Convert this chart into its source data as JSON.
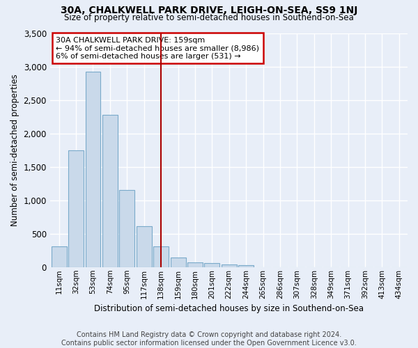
{
  "title": "30A, CHALKWELL PARK DRIVE, LEIGH-ON-SEA, SS9 1NJ",
  "subtitle": "Size of property relative to semi-detached houses in Southend-on-Sea",
  "xlabel": "Distribution of semi-detached houses by size in Southend-on-Sea",
  "ylabel": "Number of semi-detached properties",
  "bar_labels": [
    "11sqm",
    "32sqm",
    "53sqm",
    "74sqm",
    "95sqm",
    "117sqm",
    "138sqm",
    "159sqm",
    "180sqm",
    "201sqm",
    "222sqm",
    "244sqm",
    "265sqm",
    "286sqm",
    "307sqm",
    "328sqm",
    "349sqm",
    "371sqm",
    "392sqm",
    "413sqm",
    "434sqm"
  ],
  "bar_values": [
    310,
    1750,
    2920,
    2280,
    1150,
    610,
    310,
    140,
    75,
    55,
    40,
    25,
    0,
    0,
    0,
    0,
    0,
    0,
    0,
    0,
    0
  ],
  "bar_color": "#c9d9ea",
  "bar_edge_color": "#7aaaca",
  "vline_index": 6,
  "vline_color": "#aa0000",
  "annotation_text": "30A CHALKWELL PARK DRIVE: 159sqm\n← 94% of semi-detached houses are smaller (8,986)\n6% of semi-detached houses are larger (531) →",
  "annotation_box_color": "#cc0000",
  "ylim": [
    0,
    3500
  ],
  "yticks": [
    0,
    500,
    1000,
    1500,
    2000,
    2500,
    3000,
    3500
  ],
  "footnote": "Contains HM Land Registry data © Crown copyright and database right 2024.\nContains public sector information licensed under the Open Government Licence v3.0.",
  "bg_color": "#e8eef8",
  "plot_bg_color": "#e8eef8",
  "grid_color": "#ffffff"
}
